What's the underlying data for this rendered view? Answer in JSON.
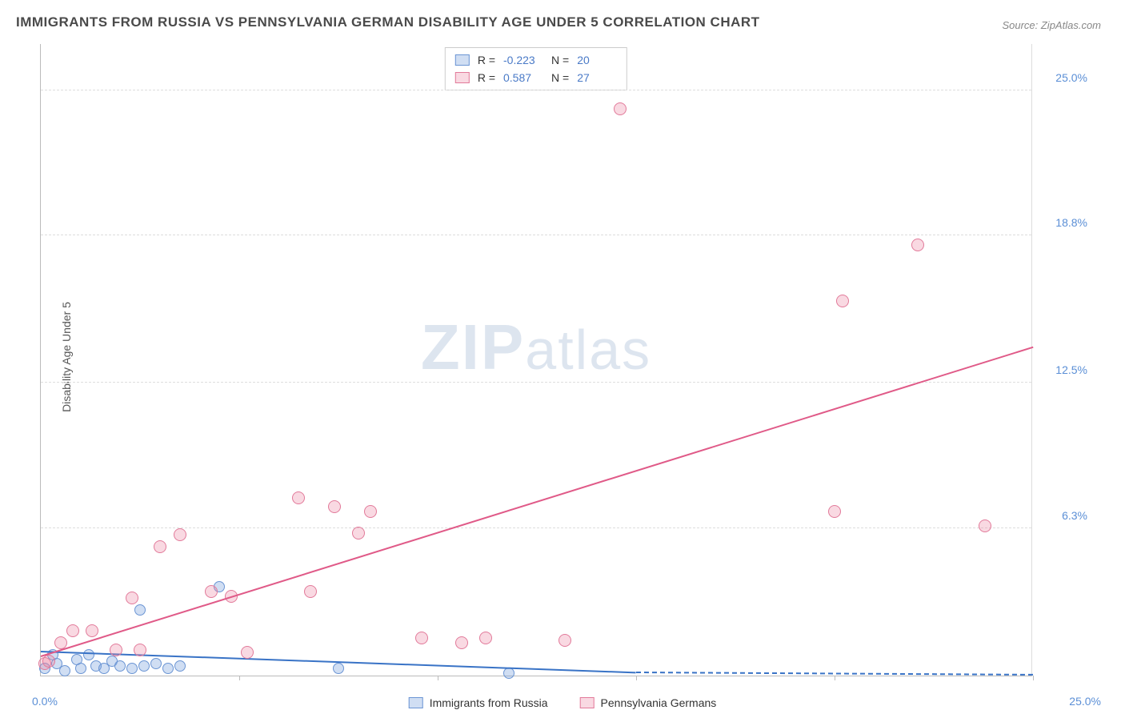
{
  "title": "IMMIGRANTS FROM RUSSIA VS PENNSYLVANIA GERMAN DISABILITY AGE UNDER 5 CORRELATION CHART",
  "source": "Source: ZipAtlas.com",
  "ylabel": "Disability Age Under 5",
  "watermark_bold": "ZIP",
  "watermark_light": "atlas",
  "chart": {
    "type": "scatter",
    "xlim": [
      0,
      25
    ],
    "ylim": [
      0,
      27
    ],
    "x_origin_label": "0.0%",
    "x_max_label": "25.0%",
    "xtick_positions": [
      5,
      10,
      15,
      20,
      25
    ],
    "yticks": [
      {
        "v": 6.3,
        "label": "6.3%"
      },
      {
        "v": 12.5,
        "label": "12.5%"
      },
      {
        "v": 18.8,
        "label": "18.8%"
      },
      {
        "v": 25.0,
        "label": "25.0%"
      }
    ],
    "grid_color": "#dddddd",
    "background_color": "#ffffff",
    "series": [
      {
        "name": "Immigrants from Russia",
        "key": "russia",
        "fill": "rgba(120,160,220,0.35)",
        "stroke": "#6b95d4",
        "line_color": "#3973c6",
        "marker_size": 14,
        "R": "-0.223",
        "N": "20",
        "trend": {
          "x1": 0,
          "y1": 1.0,
          "x2": 15,
          "y2": 0.1,
          "dash_to_x": 25
        },
        "points": [
          {
            "x": 0.1,
            "y": 0.3
          },
          {
            "x": 0.3,
            "y": 0.9
          },
          {
            "x": 0.6,
            "y": 0.2
          },
          {
            "x": 0.9,
            "y": 0.7
          },
          {
            "x": 1.0,
            "y": 0.3
          },
          {
            "x": 1.2,
            "y": 0.9
          },
          {
            "x": 1.4,
            "y": 0.4
          },
          {
            "x": 1.6,
            "y": 0.3
          },
          {
            "x": 1.8,
            "y": 0.6
          },
          {
            "x": 2.0,
            "y": 0.4
          },
          {
            "x": 2.3,
            "y": 0.3
          },
          {
            "x": 2.5,
            "y": 2.8
          },
          {
            "x": 2.6,
            "y": 0.4
          },
          {
            "x": 2.9,
            "y": 0.5
          },
          {
            "x": 3.2,
            "y": 0.3
          },
          {
            "x": 3.5,
            "y": 0.4
          },
          {
            "x": 4.5,
            "y": 3.8
          },
          {
            "x": 7.5,
            "y": 0.3
          },
          {
            "x": 11.8,
            "y": 0.1
          },
          {
            "x": 0.4,
            "y": 0.5
          }
        ]
      },
      {
        "name": "Pennsylvania Germans",
        "key": "pa_german",
        "fill": "rgba(235,130,160,0.30)",
        "stroke": "#e27a9a",
        "line_color": "#e05a88",
        "marker_size": 16,
        "R": "0.587",
        "N": "27",
        "trend": {
          "x1": 0,
          "y1": 0.8,
          "x2": 25,
          "y2": 14.0
        },
        "points": [
          {
            "x": 0.1,
            "y": 0.5
          },
          {
            "x": 0.2,
            "y": 0.6
          },
          {
            "x": 0.5,
            "y": 1.4
          },
          {
            "x": 0.8,
            "y": 1.9
          },
          {
            "x": 1.3,
            "y": 1.9
          },
          {
            "x": 1.9,
            "y": 1.1
          },
          {
            "x": 2.3,
            "y": 3.3
          },
          {
            "x": 2.5,
            "y": 1.1
          },
          {
            "x": 3.0,
            "y": 5.5
          },
          {
            "x": 3.5,
            "y": 6.0
          },
          {
            "x": 4.3,
            "y": 3.6
          },
          {
            "x": 4.8,
            "y": 3.4
          },
          {
            "x": 5.2,
            "y": 1.0
          },
          {
            "x": 6.5,
            "y": 7.6
          },
          {
            "x": 6.8,
            "y": 3.6
          },
          {
            "x": 7.4,
            "y": 7.2
          },
          {
            "x": 8.0,
            "y": 6.1
          },
          {
            "x": 8.3,
            "y": 7.0
          },
          {
            "x": 9.6,
            "y": 1.6
          },
          {
            "x": 10.6,
            "y": 1.4
          },
          {
            "x": 11.2,
            "y": 1.6
          },
          {
            "x": 13.2,
            "y": 1.5
          },
          {
            "x": 14.6,
            "y": 24.2
          },
          {
            "x": 20.0,
            "y": 7.0
          },
          {
            "x": 20.2,
            "y": 16.0
          },
          {
            "x": 22.1,
            "y": 18.4
          },
          {
            "x": 23.8,
            "y": 6.4
          }
        ]
      }
    ]
  }
}
